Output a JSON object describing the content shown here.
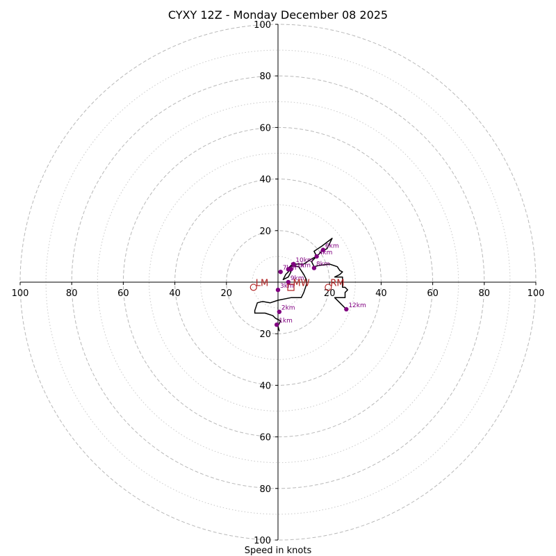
{
  "chart_data": {
    "type": "hodograph",
    "title": "CYXY 12Z - Monday December 08 2025",
    "xlabel": "Speed in knots",
    "xlim": [
      -100,
      100
    ],
    "ylim": [
      -100,
      100
    ],
    "ring_major": [
      20,
      40,
      60,
      80,
      100
    ],
    "ring_minor": [
      10,
      30,
      50,
      70,
      90
    ],
    "x_ticks": [
      {
        "value": -100,
        "label": "100"
      },
      {
        "value": -80,
        "label": "80"
      },
      {
        "value": -60,
        "label": "60"
      },
      {
        "value": -40,
        "label": "40"
      },
      {
        "value": -20,
        "label": "20"
      },
      {
        "value": 20,
        "label": "20"
      },
      {
        "value": 40,
        "label": "40"
      },
      {
        "value": 60,
        "label": "60"
      },
      {
        "value": 80,
        "label": "80"
      },
      {
        "value": 100,
        "label": "100"
      }
    ],
    "y_ticks": [
      {
        "value": 100,
        "label": "100"
      },
      {
        "value": 80,
        "label": "80"
      },
      {
        "value": 60,
        "label": "60"
      },
      {
        "value": 40,
        "label": "40"
      },
      {
        "value": 20,
        "label": "20"
      },
      {
        "value": -20,
        "label": "20"
      },
      {
        "value": -40,
        "label": "40"
      },
      {
        "value": -60,
        "label": "60"
      },
      {
        "value": -80,
        "label": "80"
      },
      {
        "value": -100,
        "label": "100"
      }
    ],
    "trace": [
      [
        0.5,
        -19
      ],
      [
        0,
        -17
      ],
      [
        1,
        -15
      ],
      [
        -1,
        -14
      ],
      [
        -2,
        -13
      ],
      [
        -5,
        -12
      ],
      [
        -9,
        -12
      ],
      [
        -9,
        -11
      ],
      [
        -8,
        -8
      ],
      [
        -6,
        -7.5
      ],
      [
        -3,
        -8
      ],
      [
        0,
        -7
      ],
      [
        5,
        -6
      ],
      [
        9,
        -6
      ],
      [
        10,
        -4
      ],
      [
        11,
        -1
      ],
      [
        11,
        1
      ],
      [
        10,
        3
      ],
      [
        8,
        6
      ],
      [
        5,
        6.5
      ],
      [
        4,
        5
      ],
      [
        5,
        4
      ],
      [
        4,
        2
      ],
      [
        2,
        1
      ],
      [
        3,
        3
      ],
      [
        4,
        4
      ],
      [
        6,
        7
      ],
      [
        10,
        7
      ],
      [
        13,
        9
      ],
      [
        15,
        10
      ],
      [
        17,
        12
      ],
      [
        19,
        13
      ],
      [
        21,
        17
      ],
      [
        17,
        14
      ],
      [
        14,
        12
      ],
      [
        15,
        10
      ],
      [
        14,
        9
      ],
      [
        13,
        8
      ],
      [
        14,
        6
      ],
      [
        16,
        6.5
      ],
      [
        20,
        7
      ],
      [
        23,
        6
      ],
      [
        24,
        4.5
      ],
      [
        25,
        4
      ],
      [
        24,
        3
      ],
      [
        22,
        2
      ],
      [
        24,
        2
      ],
      [
        25,
        2
      ],
      [
        25,
        -2
      ],
      [
        26,
        -2
      ],
      [
        27,
        -3
      ],
      [
        26,
        -4
      ],
      [
        26,
        -6
      ],
      [
        22,
        -6
      ],
      [
        24,
        -8
      ],
      [
        26.5,
        -10.5
      ]
    ],
    "height_markers": [
      {
        "label": "1km",
        "u": -0.5,
        "v": -16.5
      },
      {
        "label": "2km",
        "u": 0.5,
        "v": -11.5
      },
      {
        "label": "3km",
        "u": 0,
        "v": -3
      },
      {
        "label": "4km",
        "u": 15,
        "v": 10
      },
      {
        "label": "5km",
        "u": 4,
        "v": 5
      },
      {
        "label": "6km",
        "u": 17.5,
        "v": 12.5
      },
      {
        "label": "7km",
        "u": 1,
        "v": 4
      },
      {
        "label": "8km",
        "u": 14,
        "v": 5.5
      },
      {
        "label": "9km",
        "u": 4,
        "v": 0
      },
      {
        "label": "10km",
        "u": 6,
        "v": 7
      },
      {
        "label": "11km",
        "u": 5,
        "v": 5
      },
      {
        "label": "12km",
        "u": 26.5,
        "v": -10.5
      }
    ],
    "storm_motion": [
      {
        "label": "LM",
        "u": -9.5,
        "v": -2,
        "shape": "circle"
      },
      {
        "label": "RM",
        "u": 19.5,
        "v": -2,
        "shape": "circle"
      },
      {
        "label": "MW",
        "u": 5,
        "v": -2,
        "shape": "square"
      }
    ],
    "colors": {
      "trace": "#000000",
      "height_markers": "#800080",
      "storm_motion": "#b22222",
      "ring_major": "#b8b8b8",
      "ring_minor": "#c8c8c8",
      "axes": "#000000"
    }
  }
}
